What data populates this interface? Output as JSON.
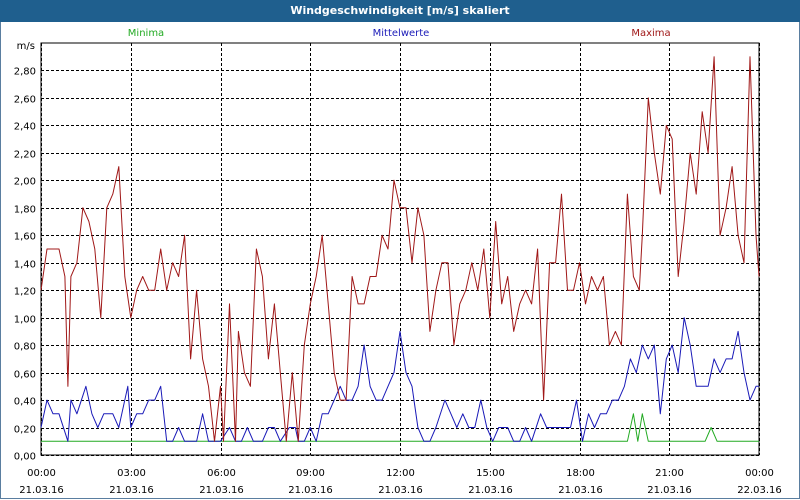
{
  "window": {
    "title": "Windgeschwindigkeit [m/s] skaliert"
  },
  "colors": {
    "minima": "#22aa22",
    "mittel": "#1a1ab8",
    "maxima": "#a01818",
    "grid": "#000000",
    "titlebar": "#1f5f8e"
  },
  "chart_data": {
    "type": "line",
    "title": "Windgeschwindigkeit [m/s] skaliert",
    "ylabel": "m/s",
    "xlabel": "",
    "ylim": [
      0,
      3.0
    ],
    "yticks": [
      "0,00",
      "0,20",
      "0,40",
      "0,60",
      "0,80",
      "1,00",
      "1,20",
      "1,40",
      "1,60",
      "1,80",
      "2,00",
      "2,20",
      "2,40",
      "2,60",
      "2,80"
    ],
    "xticks": [
      {
        "time": "00:00",
        "date": "21.03.16"
      },
      {
        "time": "03:00",
        "date": "21.03.16"
      },
      {
        "time": "06:00",
        "date": "21.03.16"
      },
      {
        "time": "09:00",
        "date": "21.03.16"
      },
      {
        "time": "12:00",
        "date": "21.03.16"
      },
      {
        "time": "15:00",
        "date": "21.03.16"
      },
      {
        "time": "18:00",
        "date": "21.03.16"
      },
      {
        "time": "21:00",
        "date": "21.03.16"
      },
      {
        "time": "00:00",
        "date": "22.03.16"
      }
    ],
    "x_range_hours": [
      0,
      24
    ],
    "grid": true,
    "legend": "top",
    "series": [
      {
        "name": "Minima",
        "color": "#22aa22",
        "points": [
          [
            0,
            0.1
          ],
          [
            19.6,
            0.1
          ],
          [
            19.8,
            0.3
          ],
          [
            19.95,
            0.1
          ],
          [
            20.1,
            0.3
          ],
          [
            20.3,
            0.1
          ],
          [
            22.2,
            0.1
          ],
          [
            22.4,
            0.2
          ],
          [
            22.6,
            0.1
          ],
          [
            24,
            0.1
          ]
        ]
      },
      {
        "name": "Mittelwerte",
        "color": "#1a1ab8",
        "points": [
          [
            0,
            0.2
          ],
          [
            0.2,
            0.4
          ],
          [
            0.4,
            0.3
          ],
          [
            0.6,
            0.3
          ],
          [
            0.9,
            0.1
          ],
          [
            1.0,
            0.4
          ],
          [
            1.2,
            0.3
          ],
          [
            1.5,
            0.5
          ],
          [
            1.7,
            0.3
          ],
          [
            1.9,
            0.2
          ],
          [
            2.1,
            0.3
          ],
          [
            2.4,
            0.3
          ],
          [
            2.6,
            0.2
          ],
          [
            2.9,
            0.5
          ],
          [
            3.0,
            0.2
          ],
          [
            3.2,
            0.3
          ],
          [
            3.4,
            0.3
          ],
          [
            3.6,
            0.4
          ],
          [
            3.8,
            0.4
          ],
          [
            4.0,
            0.5
          ],
          [
            4.2,
            0.1
          ],
          [
            4.4,
            0.1
          ],
          [
            4.6,
            0.2
          ],
          [
            4.8,
            0.1
          ],
          [
            5.0,
            0.1
          ],
          [
            5.2,
            0.1
          ],
          [
            5.4,
            0.3
          ],
          [
            5.6,
            0.1
          ],
          [
            5.8,
            0.1
          ],
          [
            6.0,
            0.1
          ],
          [
            6.3,
            0.2
          ],
          [
            6.5,
            0.1
          ],
          [
            6.7,
            0.1
          ],
          [
            6.9,
            0.2
          ],
          [
            7.1,
            0.1
          ],
          [
            7.4,
            0.1
          ],
          [
            7.6,
            0.2
          ],
          [
            7.8,
            0.2
          ],
          [
            8.0,
            0.1
          ],
          [
            8.3,
            0.2
          ],
          [
            8.5,
            0.2
          ],
          [
            8.6,
            0.1
          ],
          [
            8.8,
            0.1
          ],
          [
            9.0,
            0.2
          ],
          [
            9.2,
            0.1
          ],
          [
            9.4,
            0.3
          ],
          [
            9.6,
            0.3
          ],
          [
            9.8,
            0.4
          ],
          [
            10.0,
            0.5
          ],
          [
            10.2,
            0.4
          ],
          [
            10.4,
            0.4
          ],
          [
            10.6,
            0.5
          ],
          [
            10.8,
            0.8
          ],
          [
            11.0,
            0.5
          ],
          [
            11.2,
            0.4
          ],
          [
            11.4,
            0.4
          ],
          [
            11.6,
            0.5
          ],
          [
            11.8,
            0.6
          ],
          [
            12.0,
            0.9
          ],
          [
            12.2,
            0.6
          ],
          [
            12.4,
            0.5
          ],
          [
            12.6,
            0.2
          ],
          [
            12.8,
            0.1
          ],
          [
            13.0,
            0.1
          ],
          [
            13.2,
            0.2
          ],
          [
            13.5,
            0.4
          ],
          [
            13.7,
            0.3
          ],
          [
            13.9,
            0.2
          ],
          [
            14.1,
            0.3
          ],
          [
            14.3,
            0.2
          ],
          [
            14.5,
            0.2
          ],
          [
            14.7,
            0.4
          ],
          [
            14.9,
            0.2
          ],
          [
            15.1,
            0.1
          ],
          [
            15.3,
            0.2
          ],
          [
            15.6,
            0.2
          ],
          [
            15.8,
            0.1
          ],
          [
            16.0,
            0.1
          ],
          [
            16.2,
            0.2
          ],
          [
            16.4,
            0.1
          ],
          [
            16.7,
            0.3
          ],
          [
            16.9,
            0.2
          ],
          [
            17.2,
            0.2
          ],
          [
            17.5,
            0.2
          ],
          [
            17.7,
            0.2
          ],
          [
            17.9,
            0.4
          ],
          [
            18.1,
            0.1
          ],
          [
            18.3,
            0.3
          ],
          [
            18.5,
            0.2
          ],
          [
            18.7,
            0.3
          ],
          [
            18.9,
            0.3
          ],
          [
            19.1,
            0.4
          ],
          [
            19.3,
            0.4
          ],
          [
            19.5,
            0.5
          ],
          [
            19.7,
            0.7
          ],
          [
            19.9,
            0.6
          ],
          [
            20.1,
            0.8
          ],
          [
            20.3,
            0.7
          ],
          [
            20.5,
            0.8
          ],
          [
            20.7,
            0.3
          ],
          [
            20.9,
            0.7
          ],
          [
            21.1,
            0.8
          ],
          [
            21.3,
            0.6
          ],
          [
            21.5,
            1.0
          ],
          [
            21.7,
            0.8
          ],
          [
            21.9,
            0.5
          ],
          [
            22.1,
            0.5
          ],
          [
            22.3,
            0.5
          ],
          [
            22.5,
            0.7
          ],
          [
            22.7,
            0.6
          ],
          [
            22.9,
            0.7
          ],
          [
            23.1,
            0.7
          ],
          [
            23.3,
            0.9
          ],
          [
            23.5,
            0.6
          ],
          [
            23.7,
            0.4
          ],
          [
            23.9,
            0.5
          ],
          [
            24.0,
            0.5
          ]
        ]
      },
      {
        "name": "Maxima",
        "color": "#a01818",
        "points": [
          [
            0,
            1.2
          ],
          [
            0.2,
            1.5
          ],
          [
            0.4,
            1.5
          ],
          [
            0.6,
            1.5
          ],
          [
            0.8,
            1.3
          ],
          [
            0.9,
            0.5
          ],
          [
            1.0,
            1.3
          ],
          [
            1.2,
            1.4
          ],
          [
            1.4,
            1.8
          ],
          [
            1.6,
            1.7
          ],
          [
            1.8,
            1.5
          ],
          [
            2.0,
            1.0
          ],
          [
            2.2,
            1.8
          ],
          [
            2.4,
            1.9
          ],
          [
            2.6,
            2.1
          ],
          [
            2.8,
            1.3
          ],
          [
            3.0,
            1.0
          ],
          [
            3.2,
            1.2
          ],
          [
            3.4,
            1.3
          ],
          [
            3.6,
            1.2
          ],
          [
            3.8,
            1.2
          ],
          [
            4.0,
            1.5
          ],
          [
            4.2,
            1.2
          ],
          [
            4.4,
            1.4
          ],
          [
            4.6,
            1.3
          ],
          [
            4.8,
            1.6
          ],
          [
            5.0,
            0.7
          ],
          [
            5.2,
            1.2
          ],
          [
            5.4,
            0.7
          ],
          [
            5.6,
            0.5
          ],
          [
            5.8,
            0.1
          ],
          [
            6.0,
            0.5
          ],
          [
            6.1,
            0.1
          ],
          [
            6.3,
            1.1
          ],
          [
            6.5,
            0.1
          ],
          [
            6.6,
            0.9
          ],
          [
            6.8,
            0.6
          ],
          [
            7.0,
            0.5
          ],
          [
            7.2,
            1.5
          ],
          [
            7.4,
            1.3
          ],
          [
            7.6,
            0.7
          ],
          [
            7.8,
            1.1
          ],
          [
            8.0,
            0.6
          ],
          [
            8.2,
            0.1
          ],
          [
            8.4,
            0.6
          ],
          [
            8.6,
            0.1
          ],
          [
            8.8,
            0.8
          ],
          [
            9.0,
            1.1
          ],
          [
            9.2,
            1.3
          ],
          [
            9.4,
            1.6
          ],
          [
            9.6,
            1.1
          ],
          [
            9.8,
            0.6
          ],
          [
            10.0,
            0.4
          ],
          [
            10.2,
            0.4
          ],
          [
            10.4,
            1.3
          ],
          [
            10.6,
            1.1
          ],
          [
            10.8,
            1.1
          ],
          [
            11.0,
            1.3
          ],
          [
            11.2,
            1.3
          ],
          [
            11.4,
            1.6
          ],
          [
            11.6,
            1.5
          ],
          [
            11.8,
            2.0
          ],
          [
            12.0,
            1.8
          ],
          [
            12.2,
            1.8
          ],
          [
            12.4,
            1.4
          ],
          [
            12.6,
            1.8
          ],
          [
            12.8,
            1.6
          ],
          [
            13.0,
            0.9
          ],
          [
            13.2,
            1.2
          ],
          [
            13.4,
            1.4
          ],
          [
            13.6,
            1.4
          ],
          [
            13.8,
            0.8
          ],
          [
            14.0,
            1.1
          ],
          [
            14.2,
            1.2
          ],
          [
            14.4,
            1.4
          ],
          [
            14.6,
            1.2
          ],
          [
            14.8,
            1.5
          ],
          [
            15.0,
            1.0
          ],
          [
            15.2,
            1.7
          ],
          [
            15.4,
            1.1
          ],
          [
            15.6,
            1.3
          ],
          [
            15.8,
            0.9
          ],
          [
            16.0,
            1.1
          ],
          [
            16.2,
            1.2
          ],
          [
            16.4,
            1.1
          ],
          [
            16.6,
            1.5
          ],
          [
            16.8,
            0.4
          ],
          [
            17.0,
            1.4
          ],
          [
            17.2,
            1.4
          ],
          [
            17.4,
            1.9
          ],
          [
            17.6,
            1.2
          ],
          [
            17.8,
            1.2
          ],
          [
            18.0,
            1.4
          ],
          [
            18.2,
            1.1
          ],
          [
            18.4,
            1.3
          ],
          [
            18.6,
            1.2
          ],
          [
            18.8,
            1.3
          ],
          [
            19.0,
            0.8
          ],
          [
            19.2,
            0.9
          ],
          [
            19.4,
            0.8
          ],
          [
            19.6,
            1.9
          ],
          [
            19.8,
            1.3
          ],
          [
            20.0,
            1.2
          ],
          [
            20.1,
            1.6
          ],
          [
            20.3,
            2.6
          ],
          [
            20.5,
            2.2
          ],
          [
            20.7,
            1.9
          ],
          [
            20.9,
            2.4
          ],
          [
            21.1,
            2.3
          ],
          [
            21.3,
            1.3
          ],
          [
            21.5,
            1.7
          ],
          [
            21.7,
            2.2
          ],
          [
            21.9,
            1.9
          ],
          [
            22.1,
            2.5
          ],
          [
            22.3,
            2.2
          ],
          [
            22.5,
            2.9
          ],
          [
            22.7,
            1.6
          ],
          [
            22.9,
            1.8
          ],
          [
            23.1,
            2.1
          ],
          [
            23.3,
            1.6
          ],
          [
            23.5,
            1.4
          ],
          [
            23.7,
            2.9
          ],
          [
            23.9,
            1.6
          ],
          [
            24.0,
            1.3
          ]
        ]
      }
    ]
  }
}
